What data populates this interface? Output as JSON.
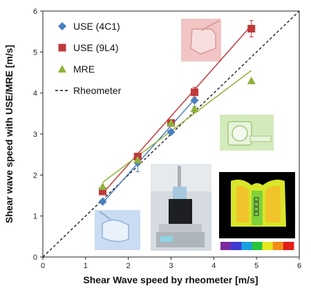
{
  "chart_data": {
    "type": "scatter",
    "xlabel": "Shear Wave speed by rheometer [m/s]",
    "ylabel": "Shear wave speed  with USE/MRE  [m/s]",
    "xlim": [
      0,
      6
    ],
    "ylim": [
      0,
      6
    ],
    "xticks": [
      "0",
      "1",
      "2",
      "3",
      "4",
      "5",
      "6"
    ],
    "yticks": [
      "0",
      "1",
      "2",
      "3",
      "4",
      "5",
      "6"
    ],
    "grid": false,
    "legend_position": "top-left",
    "series": [
      {
        "name": "USE (4C1)",
        "marker": "diamond",
        "color": "#4a7fc1",
        "x": [
          1.4,
          2.22,
          3.0,
          3.55
        ],
        "y": [
          1.35,
          2.3,
          3.05,
          3.82
        ],
        "err": [
          0.05,
          0.22,
          0.05,
          0.15
        ],
        "fit": [
          [
            1.4,
            1.32
          ],
          [
            3.55,
            3.85
          ]
        ]
      },
      {
        "name": "USE (9L4)",
        "marker": "square",
        "color": "#c0393b",
        "x": [
          1.4,
          2.22,
          3.0,
          3.55,
          4.88
        ],
        "y": [
          1.6,
          2.45,
          3.27,
          4.02,
          5.57
        ],
        "err": [
          0.05,
          0.06,
          0.06,
          0.12,
          0.2
        ],
        "fit": [
          [
            1.4,
            1.55
          ],
          [
            4.88,
            5.65
          ]
        ]
      },
      {
        "name": "MRE",
        "marker": "triangle",
        "color": "#8fb33a",
        "x": [
          1.4,
          2.22,
          3.0,
          3.55,
          4.88
        ],
        "y": [
          1.72,
          2.37,
          3.27,
          3.62,
          4.3
        ],
        "err": [
          0,
          0,
          0,
          0,
          0
        ],
        "fit": [
          [
            1.4,
            1.82
          ],
          [
            4.88,
            4.55
          ]
        ]
      }
    ],
    "reference_line": {
      "name": "Rheometer",
      "style": "dashed",
      "color": "#111111",
      "points": [
        [
          0,
          0
        ],
        [
          6,
          6
        ]
      ]
    }
  },
  "colorbar": {
    "colors": [
      "#7a2aa0",
      "#3b3bd4",
      "#1a9fe0",
      "#27c43a",
      "#e8e81e",
      "#f28c1a",
      "#e0201a"
    ]
  }
}
